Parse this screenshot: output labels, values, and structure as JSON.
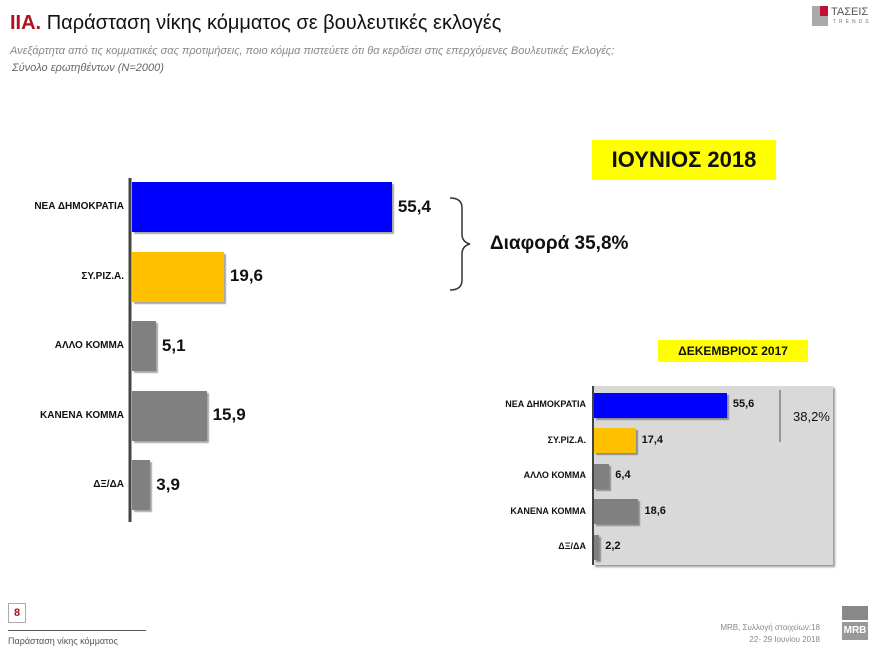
{
  "header": {
    "title_prefix": "IIA.",
    "title": "Παράσταση νίκης κόμματος σε βουλευτικές εκλογές",
    "question": "Ανεξάρτητα από τις κομματικές σας προτιμήσεις, ποιο κόμμα πιστεύετε ότι θα κερδίσει στις επερχόμενες Βουλευτικές Εκλογές;",
    "base": "Σύνολο ερωτηθέντων (Ν=2000)",
    "logo_text": "ΤΑΣΕΙΣ TRENDS"
  },
  "colors": {
    "nd": "#0000ff",
    "syriza": "#ffc000",
    "other": "#808080",
    "highlight": "#ffff00",
    "inset_bg": "#d9d9d9",
    "title_accent": "#b01020"
  },
  "chart_data": [
    {
      "type": "bar",
      "orientation": "horizontal",
      "title": "ΙΟΥΝΙΟΣ 2018",
      "categories": [
        "ΝΕΑ ΔΗΜΟΚΡΑΤΙΑ",
        "ΣΥ.ΡΙΖ.Α.",
        "ΑΛΛΟ ΚΟΜΜΑ",
        "ΚΑΝΕΝΑ ΚΟΜΜΑ",
        "ΔΞ/ΔΑ"
      ],
      "values": [
        55.4,
        19.6,
        5.1,
        15.9,
        3.9
      ],
      "value_labels": [
        "55,4",
        "19,6",
        "5,1",
        "15,9",
        "3,9"
      ],
      "annotation": "Διαφορά 35,8%",
      "grid": false
    },
    {
      "type": "bar",
      "orientation": "horizontal",
      "title": "ΔΕΚΕΜΒΡΙΟΣ 2017",
      "categories": [
        "ΝΕΑ ΔΗΜΟΚΡΑΤΙΑ",
        "ΣΥ.ΡΙΖ.Α.",
        "ΑΛΛΟ ΚΟΜΜΑ",
        "ΚΑΝΕΝΑ ΚΟΜΜΑ",
        "ΔΞ/ΔΑ"
      ],
      "values": [
        55.6,
        17.4,
        6.4,
        18.6,
        2.2
      ],
      "value_labels": [
        "55,6",
        "17,4",
        "6,4",
        "18,6",
        "2,2"
      ],
      "annotation": "38,2%",
      "grid": false
    }
  ],
  "footer": {
    "page": "8",
    "section": "Παράσταση νίκης κόμματος",
    "source_line1": "MRB, Συλλογή στοιχείων:18",
    "source_line2": "22- 29 Ιουνίου 2018",
    "logo_text": "MRB"
  }
}
